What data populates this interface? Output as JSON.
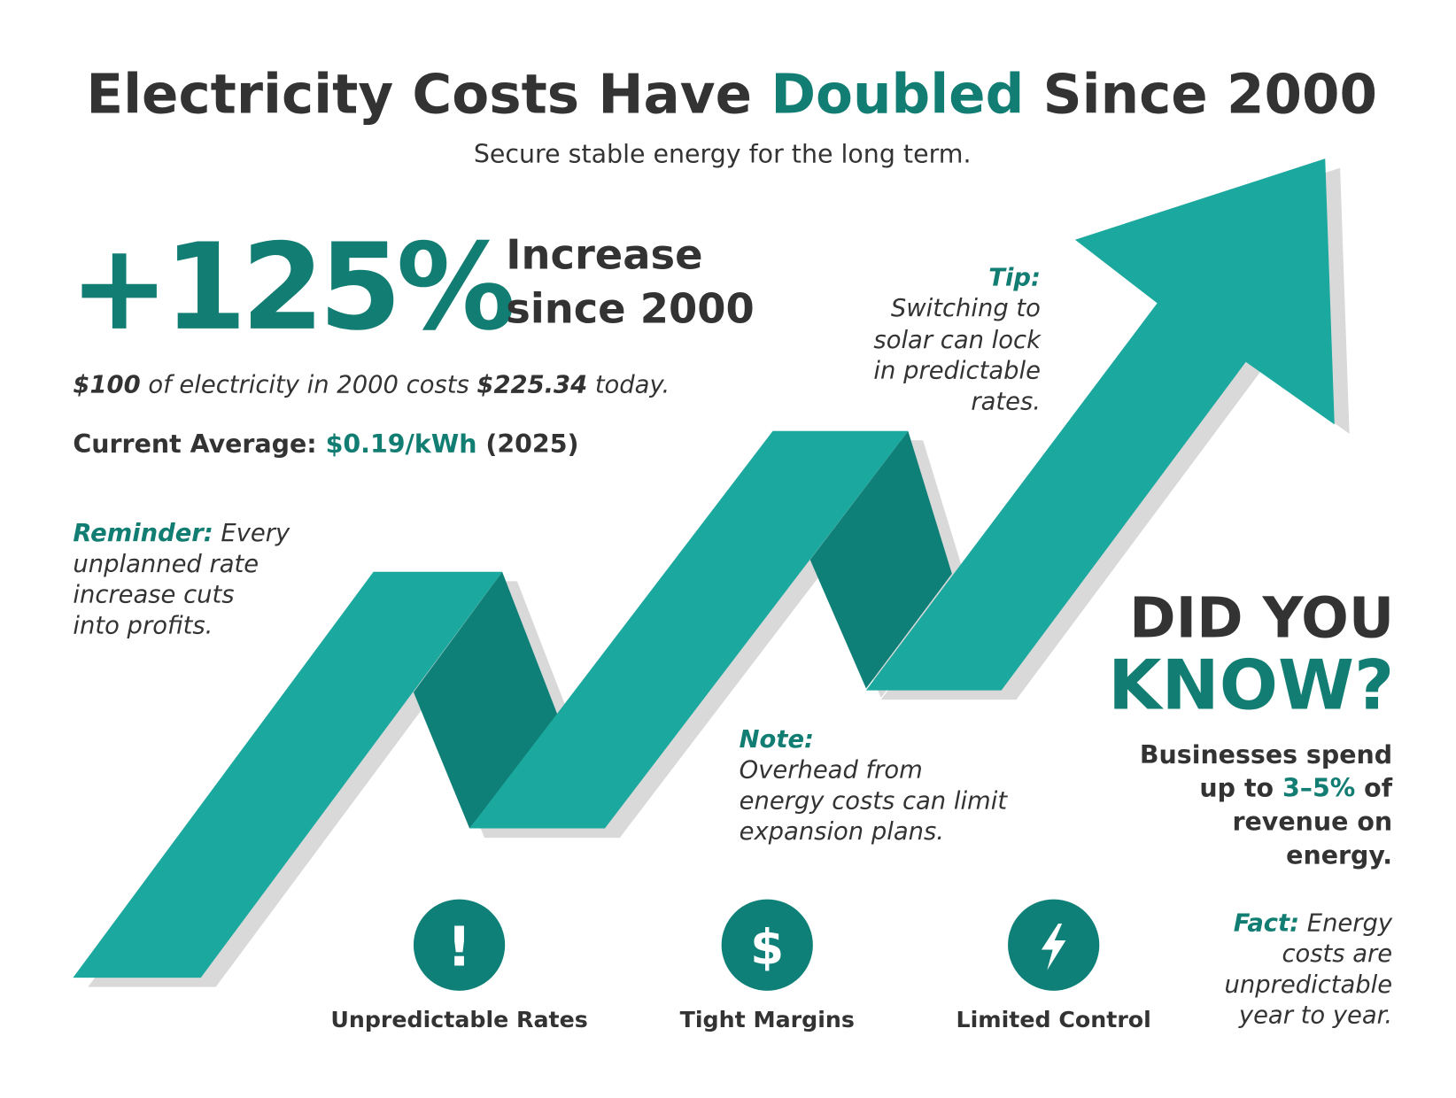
{
  "header": {
    "title_before": "Electricity Costs Have",
    "title_highlight": "Doubled",
    "title_after": "Since 2000",
    "subtitle": "Secure stable energy for the long term."
  },
  "stat": {
    "value": "+125%",
    "line1": "Increase",
    "line2": "since 2000"
  },
  "comparison": {
    "amount_then": "$100",
    "middle": "of electricity in 2000 costs",
    "amount_now": "$225.34",
    "end": "today."
  },
  "current_average": {
    "label": "Current Average:",
    "value": "$0.19/kWh",
    "year": "(2025)"
  },
  "reminder": {
    "label": "Reminder:",
    "lines": [
      "Every",
      "unplanned rate",
      "increase cuts",
      "into profits."
    ]
  },
  "tip": {
    "label": "Tip:",
    "lines": [
      "Switching to",
      "solar can lock",
      "in predictable",
      "rates."
    ]
  },
  "note": {
    "label": "Note:",
    "lines": [
      "Overhead from",
      "energy costs can limit",
      "expansion plans."
    ]
  },
  "did_you_know": {
    "line1": "DID YOU",
    "line2": "KNOW?",
    "body_line1": "Businesses spend",
    "body_before": "up to",
    "body_highlight": "3–5%",
    "body_after": "of",
    "body_line3": "revenue on",
    "body_line4": "energy."
  },
  "fact": {
    "label": "Fact:",
    "lines": [
      "Energy",
      "costs are",
      "unpredictable",
      "year to year."
    ]
  },
  "icons": [
    {
      "symbol": "!",
      "label": "Unpredictable Rates"
    },
    {
      "symbol": "$",
      "label": "Tight Margins"
    },
    {
      "label": "Limited Control"
    }
  ]
}
